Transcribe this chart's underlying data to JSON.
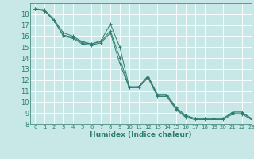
{
  "xlabel": "Humidex (Indice chaleur)",
  "ylabel": "",
  "background_color": "#c8e8e8",
  "grid_color": "#ffffff",
  "line_color": "#2e7d6e",
  "xlim": [
    -0.5,
    23
  ],
  "ylim": [
    8,
    19
  ],
  "yticks": [
    8,
    9,
    10,
    11,
    12,
    13,
    14,
    15,
    16,
    17,
    18
  ],
  "xticks": [
    0,
    1,
    2,
    3,
    4,
    5,
    6,
    7,
    8,
    9,
    10,
    11,
    12,
    13,
    14,
    15,
    16,
    17,
    18,
    19,
    20,
    21,
    22,
    23
  ],
  "series": [
    {
      "x": [
        0,
        1,
        2,
        3,
        4,
        5,
        6,
        7,
        8,
        9,
        10,
        11,
        12,
        13,
        14,
        15,
        16,
        17,
        18,
        19,
        20,
        21,
        22,
        23
      ],
      "y": [
        18.5,
        18.4,
        17.5,
        16.3,
        16.0,
        15.5,
        15.3,
        15.6,
        17.1,
        15.0,
        11.4,
        11.4,
        12.4,
        10.7,
        10.7,
        9.5,
        8.8,
        8.5,
        8.5,
        8.5,
        8.5,
        9.1,
        9.1,
        8.5
      ]
    },
    {
      "x": [
        0,
        1,
        2,
        3,
        4,
        5,
        6,
        7,
        8,
        9,
        10,
        11,
        12,
        13,
        14,
        15,
        16,
        17,
        18,
        19,
        20,
        21,
        22,
        23
      ],
      "y": [
        18.5,
        18.3,
        17.4,
        16.1,
        15.9,
        15.4,
        15.3,
        15.5,
        16.5,
        14.0,
        11.3,
        11.4,
        12.3,
        10.6,
        10.6,
        9.4,
        8.7,
        8.5,
        8.5,
        8.5,
        8.5,
        9.0,
        9.0,
        8.5
      ]
    },
    {
      "x": [
        0,
        1,
        2,
        3,
        4,
        5,
        6,
        7,
        8,
        9,
        10,
        11,
        12,
        13,
        14,
        15,
        16,
        17,
        18,
        19,
        20,
        21,
        22,
        23
      ],
      "y": [
        18.5,
        18.3,
        17.4,
        16.0,
        15.8,
        15.3,
        15.2,
        15.4,
        16.3,
        13.5,
        11.3,
        11.3,
        12.2,
        10.5,
        10.5,
        9.3,
        8.6,
        8.4,
        8.4,
        8.4,
        8.4,
        8.9,
        8.9,
        8.4
      ]
    }
  ]
}
